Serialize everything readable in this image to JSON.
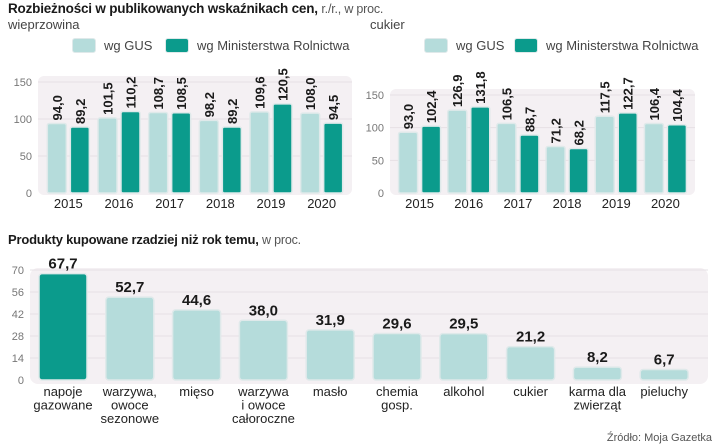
{
  "header": {
    "title_bold": "Rozbieżności w publikowanych wskaźnikach cen,",
    "title_light": "r./r., w proc."
  },
  "colors": {
    "gus": "#b5dcdb",
    "gus_border": "#dfe9ea",
    "ministry": "#0b9b8c",
    "plot_bg": "#f4f0f3"
  },
  "legend": {
    "gus_label": "wg GUS",
    "ministry_label": "wg Ministerstwa Rolnictwa"
  },
  "bottom": {
    "title_bold": "Produkty kupowane rzadziej niż rok temu,",
    "title_light": "w proc."
  },
  "source": "Źródło: Moja Gazetka",
  "chart_data": [
    {
      "type": "bar",
      "title": "wieprzowina",
      "categories": [
        "2015",
        "2016",
        "2017",
        "2018",
        "2019",
        "2020"
      ],
      "series": [
        {
          "name": "wg GUS",
          "values": [
            94.0,
            101.5,
            108.7,
            98.2,
            109.6,
            108.0
          ],
          "labels": [
            "94,0",
            "101,5",
            "108,7",
            "98,2",
            "109,6",
            "108,0"
          ]
        },
        {
          "name": "wg Ministerstwa Rolnictwa",
          "values": [
            89.2,
            110.2,
            108.5,
            89.2,
            120.5,
            94.5
          ],
          "labels": [
            "89,2",
            "110,2",
            "108,5",
            "89,2",
            "120,5",
            "94,5"
          ]
        }
      ],
      "yticks": [
        0,
        50,
        100,
        150
      ],
      "ylim": [
        0,
        150
      ],
      "xlabel": "",
      "ylabel": "",
      "legend": "top",
      "grid": true
    },
    {
      "type": "bar",
      "title": "cukier",
      "categories": [
        "2015",
        "2016",
        "2017",
        "2018",
        "2019",
        "2020"
      ],
      "series": [
        {
          "name": "wg GUS",
          "values": [
            93.0,
            126.9,
            106.5,
            71.2,
            117.5,
            106.4
          ],
          "labels": [
            "93,0",
            "126,9",
            "106,5",
            "71,2",
            "117,5",
            "106,4"
          ]
        },
        {
          "name": "wg Ministerstwa Rolnictwa",
          "values": [
            102.4,
            131.8,
            88.7,
            68.2,
            122.7,
            104.4
          ],
          "labels": [
            "102,4",
            "131,8",
            "88,7",
            "68,2",
            "122,7",
            "104,4"
          ]
        }
      ],
      "yticks": [
        0,
        50,
        100,
        150
      ],
      "ylim": [
        0,
        150
      ],
      "xlabel": "",
      "ylabel": "",
      "legend": "top",
      "grid": true
    },
    {
      "type": "bar",
      "title": "Produkty kupowane rzadziej niż rok temu, w proc.",
      "categories": [
        [
          "napoje",
          "gazowane"
        ],
        [
          "warzywa,",
          "owoce",
          "sezonowe"
        ],
        [
          "mięso"
        ],
        [
          "warzywa",
          "i owoce",
          "całoroczne"
        ],
        [
          "masło"
        ],
        [
          "chemia",
          "gosp."
        ],
        [
          "alkohol"
        ],
        [
          "cukier"
        ],
        [
          "karma dla",
          "zwierząt"
        ],
        [
          "pieluchy"
        ]
      ],
      "values": [
        67.7,
        52.7,
        44.6,
        38.0,
        31.9,
        29.6,
        29.5,
        21.2,
        8.2,
        6.7
      ],
      "labels": [
        "67,7",
        "52,7",
        "44,6",
        "38,0",
        "31,9",
        "29,6",
        "29,5",
        "21,2",
        "8,2",
        "6,7"
      ],
      "highlight_index": 0,
      "yticks": [
        0,
        14,
        28,
        42,
        56,
        70
      ],
      "ylim": [
        0,
        70
      ],
      "xlabel": "",
      "ylabel": "",
      "grid": true
    }
  ]
}
